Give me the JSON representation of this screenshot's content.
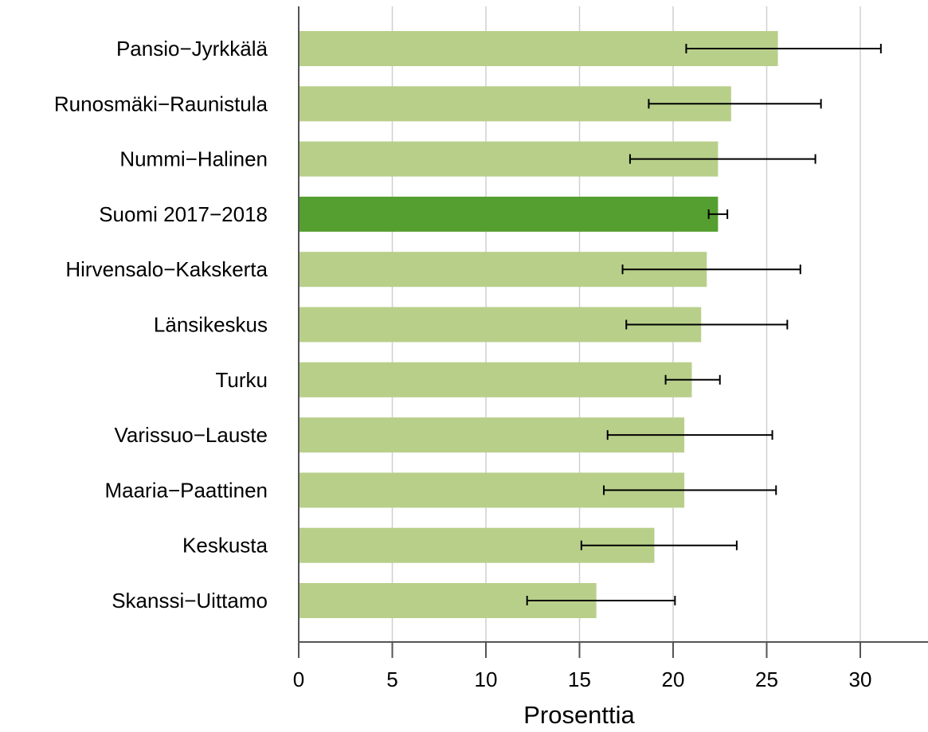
{
  "chart_data": {
    "type": "bar",
    "orientation": "horizontal",
    "title": "",
    "xlabel": "Prosenttia",
    "ylabel": "",
    "xlim": [
      0,
      33.5
    ],
    "xticks": [
      0,
      5,
      10,
      15,
      20,
      25,
      30
    ],
    "grid": "vertical",
    "categories": [
      "Pansio−Jyrkkälä",
      "Runosmäki−Raunistula",
      "Nummi−Halinen",
      "Suomi 2017−2018",
      "Hirvensalo−Kakskerta",
      "Länsikeskus",
      "Turku",
      "Varissuo−Lauste",
      "Maaria−Paattinen",
      "Keskusta",
      "Skanssi−Uittamo"
    ],
    "values": [
      25.6,
      23.1,
      22.4,
      22.4,
      21.8,
      21.5,
      21.0,
      20.6,
      20.6,
      19.0,
      15.9
    ],
    "error_low": [
      20.7,
      18.7,
      17.7,
      21.9,
      17.3,
      17.5,
      19.6,
      16.5,
      16.3,
      15.1,
      12.2
    ],
    "error_high": [
      31.1,
      27.9,
      27.6,
      22.9,
      26.8,
      26.1,
      22.5,
      25.3,
      25.5,
      23.4,
      20.1
    ],
    "highlight_index": 3,
    "colors": {
      "bar": "#b8cf8a",
      "highlight_bar": "#559e30",
      "grid": "#d0d0d0",
      "axis": "#555555",
      "error_bar": "#000000"
    }
  }
}
